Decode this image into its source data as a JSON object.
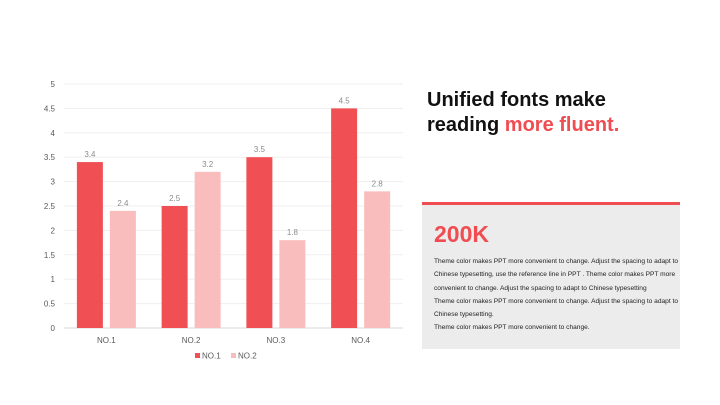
{
  "chart_data": {
    "type": "bar",
    "categories": [
      "NO.1",
      "NO.2",
      "NO.3",
      "NO.4"
    ],
    "series": [
      {
        "name": "NO.1",
        "values": [
          3.4,
          2.5,
          3.5,
          4.5
        ],
        "color": "#f04f54"
      },
      {
        "name": "NO.2",
        "values": [
          2.4,
          3.2,
          1.8,
          2.8
        ],
        "color": "#f9bdbd"
      }
    ],
    "ylim": [
      0,
      5
    ],
    "yticks": [
      "0",
      "0.5",
      "1",
      "1.5",
      "2",
      "2.5",
      "3",
      "3.5",
      "4",
      "4.5",
      "5"
    ],
    "grid": true,
    "legend": "bottom",
    "data_labels": true
  },
  "heading": {
    "line1": "Unified fonts make",
    "line2_prefix": "reading ",
    "line2_highlight": "more fluent."
  },
  "card": {
    "stat": "200K",
    "paragraphs": [
      "Theme color makes PPT more convenient to change. Adjust the spacing to adapt to Chinese typesetting, use the reference line in PPT . Theme color makes PPT more convenient to change. Adjust the spacing to adapt to Chinese typesetting",
      "Theme color makes PPT more convenient to change. Adjust the spacing to adapt to Chinese typesetting.",
      "Theme color makes PPT more convenient to change."
    ]
  },
  "colors": {
    "accent": "#ef4d52",
    "card_bg": "#ececed"
  }
}
